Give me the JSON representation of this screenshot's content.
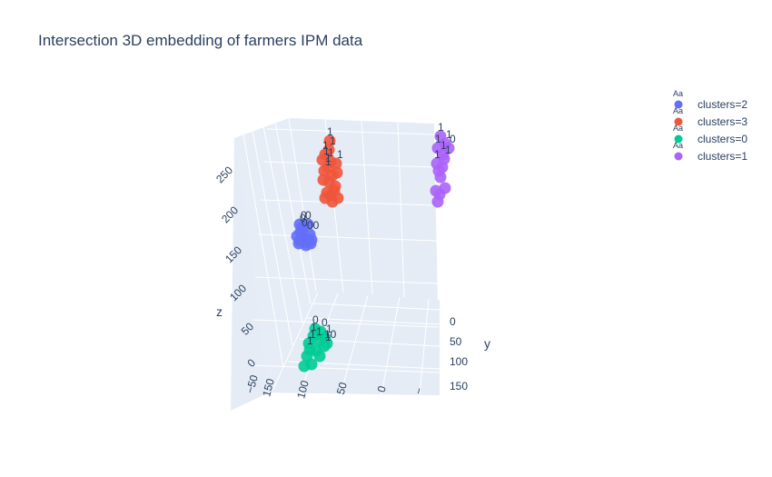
{
  "chart_data": {
    "type": "scatter3d",
    "title": "Intersection 3D embedding of farmers IPM data",
    "axes": {
      "x": {
        "label": "",
        "ticks": [
          "−50",
          "150",
          "100",
          "50",
          "0",
          "−"
        ]
      },
      "y": {
        "label": "y",
        "ticks": [
          "0",
          "50",
          "100",
          "150"
        ]
      },
      "z": {
        "label": "z",
        "ticks": [
          "0",
          "50",
          "100",
          "150",
          "200",
          "250"
        ]
      }
    },
    "grid": true,
    "legend": {
      "placement": "top-right",
      "symbol_text": "Aa"
    },
    "series": [
      {
        "name": "clusters=2",
        "color": "#636efa",
        "label_text": [
          "0",
          "0",
          "0",
          "0",
          "00"
        ],
        "points": [
          [
            330,
            265
          ],
          [
            336,
            262
          ],
          [
            341,
            258
          ],
          [
            333,
            258
          ],
          [
            327,
            260
          ],
          [
            337,
            270
          ],
          [
            329,
            268
          ],
          [
            343,
            264
          ],
          [
            333,
            250
          ],
          [
            339,
            247
          ],
          [
            331,
            255
          ],
          [
            335,
            266
          ],
          [
            342,
            268
          ],
          [
            330,
            247
          ]
        ]
      },
      {
        "name": "clusters=3",
        "color": "#ef553b",
        "label_text": [
          "1",
          "1",
          "1",
          "1",
          "1",
          "1",
          "1",
          "1"
        ],
        "points": [
          [
            363,
            155
          ],
          [
            362,
            165
          ],
          [
            358,
            170
          ],
          [
            370,
            180
          ],
          [
            364,
            178
          ],
          [
            357,
            188
          ],
          [
            366,
            193
          ],
          [
            371,
            190
          ],
          [
            362,
            200
          ],
          [
            356,
            198
          ],
          [
            368,
            210
          ],
          [
            364,
            215
          ],
          [
            360,
            212
          ],
          [
            372,
            218
          ],
          [
            366,
            222
          ],
          [
            358,
            218
          ],
          [
            369,
            205
          ],
          [
            361,
            184
          ],
          [
            355,
            176
          ]
        ]
      },
      {
        "name": "clusters=0",
        "color": "#00cc96",
        "label_text": [
          "0",
          "0",
          "1",
          "1",
          "1",
          "1",
          "10",
          "1",
          "1"
        ],
        "points": [
          [
            345,
            370
          ],
          [
            340,
            378
          ],
          [
            351,
            375
          ],
          [
            357,
            381
          ],
          [
            348,
            386
          ],
          [
            338,
            392
          ],
          [
            343,
            401
          ],
          [
            335,
            403
          ],
          [
            353,
            365
          ],
          [
            347,
            362
          ],
          [
            358,
            372
          ],
          [
            341,
            385
          ],
          [
            352,
            392
          ],
          [
            360,
            378
          ]
        ]
      },
      {
        "name": "clusters=1",
        "color": "#ab63fa",
        "label_text": [
          "1",
          "1",
          "1",
          "0",
          "1",
          "1",
          "1"
        ],
        "points": [
          [
            485,
            150
          ],
          [
            490,
            158
          ],
          [
            482,
            163
          ],
          [
            488,
            170
          ],
          [
            494,
            163
          ],
          [
            481,
            180
          ],
          [
            487,
            184
          ],
          [
            485,
            195
          ],
          [
            480,
            210
          ],
          [
            490,
            207
          ],
          [
            484,
            214
          ],
          [
            482,
            222
          ],
          [
            489,
            175
          ],
          [
            483,
            188
          ]
        ]
      }
    ]
  }
}
